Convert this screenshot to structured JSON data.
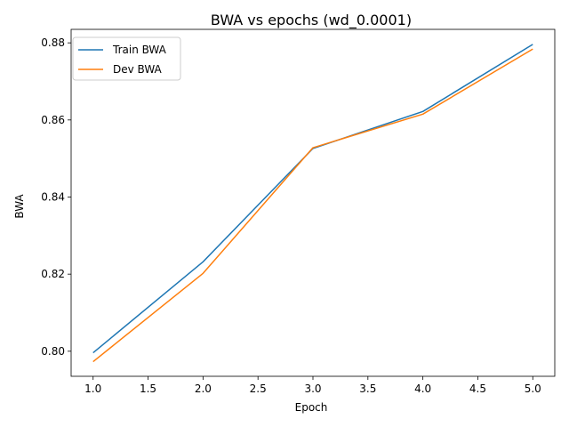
{
  "chart_data": {
    "type": "line",
    "title": "BWA vs epochs (wd_0.0001)",
    "xlabel": "Epoch",
    "ylabel": "BWA",
    "xlim": [
      0.8,
      5.2
    ],
    "ylim": [
      0.7935,
      0.8835
    ],
    "x_ticks": [
      "1.0",
      "1.5",
      "2.0",
      "2.5",
      "3.0",
      "3.5",
      "4.0",
      "4.5",
      "5.0"
    ],
    "y_ticks": [
      "0.80",
      "0.82",
      "0.84",
      "0.86",
      "0.88"
    ],
    "grid": false,
    "legend_position": "upper-left",
    "x": [
      1,
      2,
      3,
      4,
      5
    ],
    "series": [
      {
        "name": "Train BWA",
        "color": "#1f77b4",
        "values": [
          0.7996,
          0.8232,
          0.8526,
          0.8622,
          0.8796
        ]
      },
      {
        "name": "Dev BWA",
        "color": "#ff7f0e",
        "values": [
          0.7973,
          0.8202,
          0.8528,
          0.8615,
          0.8784
        ]
      }
    ]
  }
}
